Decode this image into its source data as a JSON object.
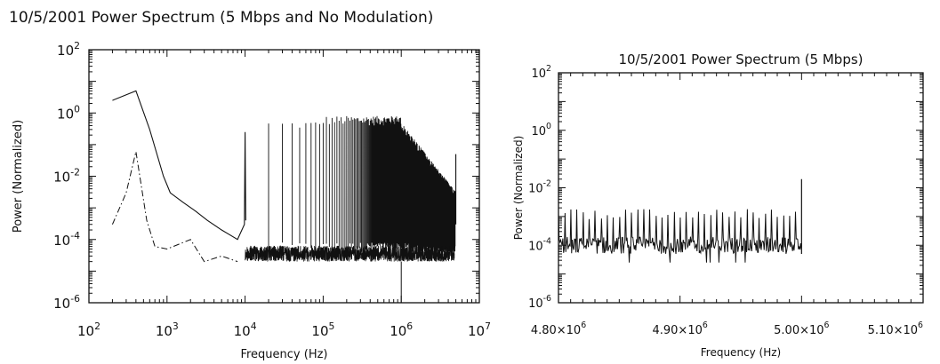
{
  "chart_data": [
    {
      "type": "line",
      "title": "10/5/2001 Power Spectrum (5 Mbps and No Modulation)",
      "xlabel": "Frequency (Hz)",
      "ylabel": "Power (Normalized)",
      "xscale": "log",
      "yscale": "log",
      "xlim": [
        100,
        10000000
      ],
      "ylim": [
        1e-06,
        100
      ],
      "x_ticks": [
        {
          "b": "10",
          "e": "2"
        },
        {
          "b": "10",
          "e": "3"
        },
        {
          "b": "10",
          "e": "4"
        },
        {
          "b": "10",
          "e": "5"
        },
        {
          "b": "10",
          "e": "6"
        },
        {
          "b": "10",
          "e": "7"
        }
      ],
      "y_ticks": [
        {
          "b": "10",
          "e": "-6"
        },
        {
          "b": "10",
          "e": "-4"
        },
        {
          "b": "10",
          "e": "-2"
        },
        {
          "b": "10",
          "e": "0"
        },
        {
          "b": "10",
          "e": "2"
        }
      ],
      "series": [
        {
          "style": "solid",
          "points": [
            [
              200,
              2.5
            ],
            [
              400,
              5
            ],
            [
              600,
              0.3
            ],
            [
              900,
              0.01
            ],
            [
              1100,
              0.003
            ],
            [
              1600,
              0.0015
            ],
            [
              2300,
              0.0008
            ],
            [
              3300,
              0.0004
            ],
            [
              5000,
              0.0002
            ],
            [
              8000,
              0.0001
            ],
            [
              9800,
              0.0003
            ],
            [
              10000,
              0.25
            ],
            [
              10200,
              0.0004
            ],
            [
              20000,
              0.3
            ],
            [
              100000,
              0.8
            ],
            [
              1000000,
              0.6
            ],
            [
              4800000,
              0.003
            ],
            [
              5000000,
              0.05
            ]
          ]
        },
        {
          "style": "dash-dot",
          "points": [
            [
              200,
              0.0003
            ],
            [
              300,
              0.003
            ],
            [
              400,
              0.06
            ],
            [
              550,
              0.0004
            ],
            [
              700,
              6e-05
            ],
            [
              1000,
              5e-05
            ],
            [
              2000,
              0.0001
            ],
            [
              3000,
              2e-05
            ],
            [
              5000,
              3e-05
            ],
            [
              8000,
              2e-05
            ]
          ]
        },
        {
          "style": "dotted",
          "points": [
            [
              10000,
              5e-05
            ],
            [
              30000,
              3e-05
            ],
            [
              100000,
              4e-05
            ],
            [
              1000000,
              5e-05
            ],
            [
              5000000,
              6e-05
            ]
          ]
        }
      ]
    },
    {
      "type": "line",
      "title": "10/5/2001 Power Spectrum (5 Mbps)",
      "xlabel": "Frequency (Hz)",
      "ylabel": "Power (Normalized)",
      "xscale": "linear",
      "yscale": "log",
      "xlim": [
        4800000,
        5100000
      ],
      "ylim": [
        1e-06,
        100
      ],
      "x_ticks": [
        {
          "m": "4.80×10",
          "e": "6"
        },
        {
          "m": "4.90×10",
          "e": "6"
        },
        {
          "m": "5.00×10",
          "e": "6"
        },
        {
          "m": "5.10×10",
          "e": "6"
        }
      ],
      "y_ticks": [
        {
          "b": "10",
          "e": "-6"
        },
        {
          "b": "10",
          "e": "-4"
        },
        {
          "b": "10",
          "e": "-2"
        },
        {
          "b": "10",
          "e": "0"
        },
        {
          "b": "10",
          "e": "2"
        }
      ],
      "series": [
        {
          "style": "solid",
          "noise_floor": 0.0001,
          "peak_spacing_hz": 5000,
          "peak_level": 0.0012,
          "spike": [
            5000000,
            0.02
          ],
          "x_range": [
            4800000,
            5000000
          ]
        }
      ]
    }
  ]
}
